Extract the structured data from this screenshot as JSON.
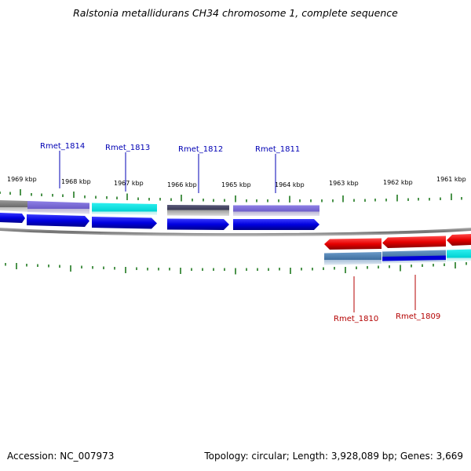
{
  "title": "Ralstonia metallidurans CH34 chromosome 1, complete sequence",
  "footer": {
    "accession": "Accession: NC_007973",
    "summary": "Topology: circular; Length: 3,928,089 bp; Genes: 3,669"
  },
  "ticks": [
    "1969 kbp",
    "1968 kbp",
    "1967 kbp",
    "1966 kbp",
    "1965 kbp",
    "1964 kbp",
    "1963 kbp",
    "1962 kbp",
    "1961 kbp"
  ],
  "genes_forward": [
    "Rmet_1814",
    "Rmet_1813",
    "Rmet_1812",
    "Rmet_1811"
  ],
  "genes_reverse": [
    "Rmet_1810",
    "Rmet_1809"
  ],
  "colors": {
    "forward_cds": "#0000e6",
    "reverse_cds": "#e60000",
    "top_label": "#0000b4",
    "bottom_label": "#b40000",
    "tick": "#006600",
    "backbone": "#808080",
    "cog_purple": "#7b68d8",
    "cog_cyan": "#00dede",
    "cog_dark": "#4a4a6a",
    "cog_steel": "#4682b4",
    "cog_gray": "#7a7a7a"
  }
}
